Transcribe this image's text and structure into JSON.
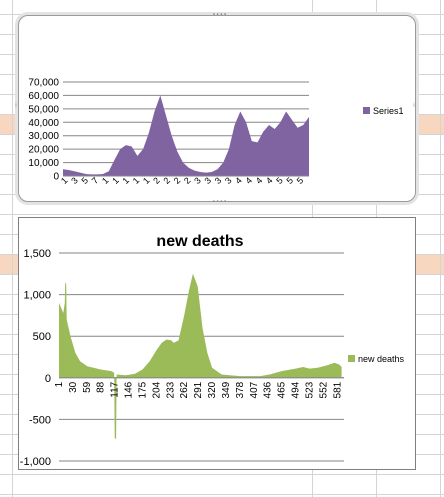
{
  "sheet": {
    "highlight_color": "#f7d7bf",
    "gridline_color": "#d4d4d4"
  },
  "chart_data": [
    {
      "type": "area",
      "title": "",
      "xlabel": "",
      "ylabel": "",
      "ylim": [
        0,
        70000
      ],
      "yticks": [
        "0",
        "10,000",
        "20,000",
        "30,000",
        "40,000",
        "50,000",
        "60,000",
        "70,000"
      ],
      "xtick_labels": [
        "1",
        "3",
        "5",
        "7",
        "1",
        "1",
        "1",
        "1",
        "1",
        "2",
        "2",
        "2",
        "2",
        "3",
        "3",
        "3",
        "3",
        "4",
        "4",
        "4",
        "4",
        "5",
        "5",
        "5"
      ],
      "grid": true,
      "legend_position": "right",
      "color": "#8064a2",
      "series": [
        {
          "name": "Series1",
          "values": [
            5000,
            4500,
            3500,
            2500,
            1500,
            1200,
            1200,
            1500,
            3500,
            12000,
            20000,
            23000,
            22000,
            15000,
            20000,
            32000,
            48000,
            60000,
            45000,
            30000,
            18000,
            10000,
            6000,
            4000,
            3000,
            2500,
            3000,
            5000,
            10000,
            20000,
            38000,
            48000,
            40000,
            26000,
            25000,
            33000,
            38000,
            35000,
            40000,
            48000,
            42000,
            36000,
            38000,
            44000
          ]
        }
      ]
    },
    {
      "type": "area",
      "title": "new deaths",
      "xlabel": "",
      "ylabel": "",
      "ylim": [
        -1000,
        1500
      ],
      "yticks": [
        "1,500",
        "1,000",
        "500",
        "0",
        "-500",
        "-1,000"
      ],
      "categories_shown": [
        "1",
        "30",
        "59",
        "88",
        "117",
        "146",
        "175",
        "204",
        "233",
        "262",
        "291",
        "320",
        "349",
        "378",
        "407",
        "436",
        "465",
        "494",
        "523",
        "552",
        "581"
      ],
      "grid": true,
      "legend_position": "right",
      "color": "#9bbb59",
      "series": [
        {
          "name": "new deaths",
          "points": [
            [
              1,
              900
            ],
            [
              10,
              780
            ],
            [
              13,
              900
            ],
            [
              14,
              1150
            ],
            [
              16,
              1120
            ],
            [
              17,
              700
            ],
            [
              25,
              500
            ],
            [
              35,
              300
            ],
            [
              45,
              200
            ],
            [
              60,
              140
            ],
            [
              88,
              100
            ],
            [
              110,
              80
            ],
            [
              116,
              60
            ],
            [
              117,
              -720
            ],
            [
              120,
              -740
            ],
            [
              121,
              40
            ],
            [
              140,
              30
            ],
            [
              160,
              50
            ],
            [
              175,
              100
            ],
            [
              190,
              200
            ],
            [
              204,
              330
            ],
            [
              215,
              420
            ],
            [
              225,
              460
            ],
            [
              235,
              450
            ],
            [
              240,
              420
            ],
            [
              250,
              450
            ],
            [
              262,
              750
            ],
            [
              272,
              1050
            ],
            [
              280,
              1250
            ],
            [
              290,
              1100
            ],
            [
              300,
              600
            ],
            [
              310,
              300
            ],
            [
              320,
              120
            ],
            [
              340,
              40
            ],
            [
              378,
              20
            ],
            [
              420,
              20
            ],
            [
              440,
              40
            ],
            [
              465,
              80
            ],
            [
              494,
              110
            ],
            [
              510,
              130
            ],
            [
              523,
              110
            ],
            [
              540,
              120
            ],
            [
              560,
              150
            ],
            [
              575,
              180
            ],
            [
              585,
              160
            ],
            [
              590,
              130
            ]
          ]
        }
      ]
    }
  ]
}
